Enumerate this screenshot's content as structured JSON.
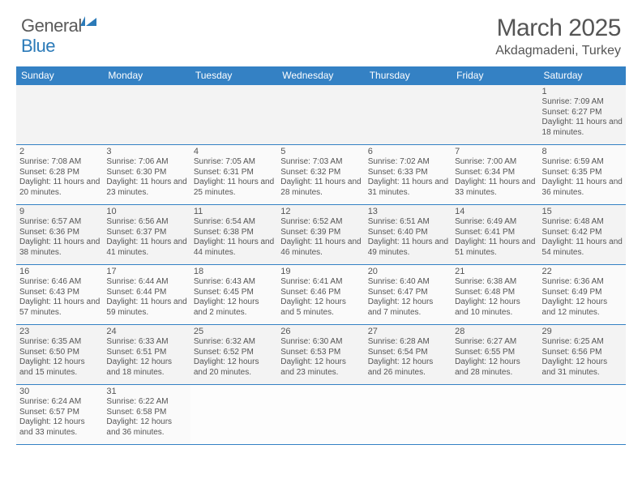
{
  "logo": {
    "general": "General",
    "blue": "Blue"
  },
  "title": "March 2025",
  "location": "Akdagmadeni, Turkey",
  "colors": {
    "header_bg": "#3481c4",
    "header_text": "#ffffff",
    "body_text": "#555555",
    "logo_gray": "#5a5a5a",
    "logo_blue": "#2b7ab8",
    "row_border": "#3481c4"
  },
  "weekdays": [
    "Sunday",
    "Monday",
    "Tuesday",
    "Wednesday",
    "Thursday",
    "Friday",
    "Saturday"
  ],
  "weeks": [
    [
      null,
      null,
      null,
      null,
      null,
      null,
      {
        "d": "1",
        "r": "7:09 AM",
        "s": "6:27 PM",
        "dl": "11 hours and 18 minutes."
      }
    ],
    [
      {
        "d": "2",
        "r": "7:08 AM",
        "s": "6:28 PM",
        "dl": "11 hours and 20 minutes."
      },
      {
        "d": "3",
        "r": "7:06 AM",
        "s": "6:30 PM",
        "dl": "11 hours and 23 minutes."
      },
      {
        "d": "4",
        "r": "7:05 AM",
        "s": "6:31 PM",
        "dl": "11 hours and 25 minutes."
      },
      {
        "d": "5",
        "r": "7:03 AM",
        "s": "6:32 PM",
        "dl": "11 hours and 28 minutes."
      },
      {
        "d": "6",
        "r": "7:02 AM",
        "s": "6:33 PM",
        "dl": "11 hours and 31 minutes."
      },
      {
        "d": "7",
        "r": "7:00 AM",
        "s": "6:34 PM",
        "dl": "11 hours and 33 minutes."
      },
      {
        "d": "8",
        "r": "6:59 AM",
        "s": "6:35 PM",
        "dl": "11 hours and 36 minutes."
      }
    ],
    [
      {
        "d": "9",
        "r": "6:57 AM",
        "s": "6:36 PM",
        "dl": "11 hours and 38 minutes."
      },
      {
        "d": "10",
        "r": "6:56 AM",
        "s": "6:37 PM",
        "dl": "11 hours and 41 minutes."
      },
      {
        "d": "11",
        "r": "6:54 AM",
        "s": "6:38 PM",
        "dl": "11 hours and 44 minutes."
      },
      {
        "d": "12",
        "r": "6:52 AM",
        "s": "6:39 PM",
        "dl": "11 hours and 46 minutes."
      },
      {
        "d": "13",
        "r": "6:51 AM",
        "s": "6:40 PM",
        "dl": "11 hours and 49 minutes."
      },
      {
        "d": "14",
        "r": "6:49 AM",
        "s": "6:41 PM",
        "dl": "11 hours and 51 minutes."
      },
      {
        "d": "15",
        "r": "6:48 AM",
        "s": "6:42 PM",
        "dl": "11 hours and 54 minutes."
      }
    ],
    [
      {
        "d": "16",
        "r": "6:46 AM",
        "s": "6:43 PM",
        "dl": "11 hours and 57 minutes."
      },
      {
        "d": "17",
        "r": "6:44 AM",
        "s": "6:44 PM",
        "dl": "11 hours and 59 minutes."
      },
      {
        "d": "18",
        "r": "6:43 AM",
        "s": "6:45 PM",
        "dl": "12 hours and 2 minutes."
      },
      {
        "d": "19",
        "r": "6:41 AM",
        "s": "6:46 PM",
        "dl": "12 hours and 5 minutes."
      },
      {
        "d": "20",
        "r": "6:40 AM",
        "s": "6:47 PM",
        "dl": "12 hours and 7 minutes."
      },
      {
        "d": "21",
        "r": "6:38 AM",
        "s": "6:48 PM",
        "dl": "12 hours and 10 minutes."
      },
      {
        "d": "22",
        "r": "6:36 AM",
        "s": "6:49 PM",
        "dl": "12 hours and 12 minutes."
      }
    ],
    [
      {
        "d": "23",
        "r": "6:35 AM",
        "s": "6:50 PM",
        "dl": "12 hours and 15 minutes."
      },
      {
        "d": "24",
        "r": "6:33 AM",
        "s": "6:51 PM",
        "dl": "12 hours and 18 minutes."
      },
      {
        "d": "25",
        "r": "6:32 AM",
        "s": "6:52 PM",
        "dl": "12 hours and 20 minutes."
      },
      {
        "d": "26",
        "r": "6:30 AM",
        "s": "6:53 PM",
        "dl": "12 hours and 23 minutes."
      },
      {
        "d": "27",
        "r": "6:28 AM",
        "s": "6:54 PM",
        "dl": "12 hours and 26 minutes."
      },
      {
        "d": "28",
        "r": "6:27 AM",
        "s": "6:55 PM",
        "dl": "12 hours and 28 minutes."
      },
      {
        "d": "29",
        "r": "6:25 AM",
        "s": "6:56 PM",
        "dl": "12 hours and 31 minutes."
      }
    ],
    [
      {
        "d": "30",
        "r": "6:24 AM",
        "s": "6:57 PM",
        "dl": "12 hours and 33 minutes."
      },
      {
        "d": "31",
        "r": "6:22 AM",
        "s": "6:58 PM",
        "dl": "12 hours and 36 minutes."
      },
      null,
      null,
      null,
      null,
      null
    ]
  ],
  "labels": {
    "sunrise": "Sunrise:",
    "sunset": "Sunset:",
    "daylight": "Daylight:"
  }
}
